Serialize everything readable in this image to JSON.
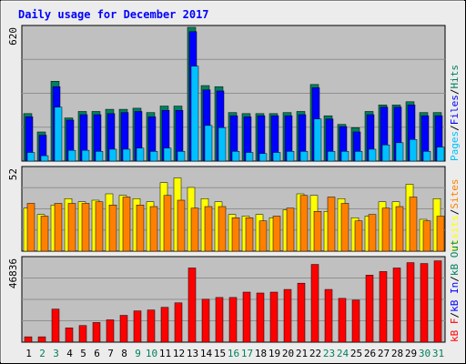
{
  "title": "Daily usage for December 2017",
  "colors": {
    "frame_bg": "#ececec",
    "plot_bg": "#c0c0c0",
    "grid": "#909090",
    "hits": "#00805c",
    "files": "#0000ff",
    "pages": "#00c0ff",
    "visits": "#ffff00",
    "sites": "#ff8000",
    "kbf": "#ff0000",
    "title": "#0000ff"
  },
  "chart_data": [
    {
      "type": "bar",
      "panel": "top",
      "ymax_label": "620",
      "ylim": [
        0,
        620
      ],
      "categories": [
        "1",
        "2",
        "3",
        "4",
        "5",
        "6",
        "7",
        "8",
        "9",
        "10",
        "11",
        "12",
        "13",
        "14",
        "15",
        "16",
        "17",
        "18",
        "19",
        "20",
        "21",
        "22",
        "23",
        "24",
        "25",
        "26",
        "27",
        "28",
        "29",
        "30",
        "31"
      ],
      "weekend_days": [
        "2",
        "3",
        "9",
        "10",
        "16",
        "17",
        "23",
        "24",
        "30",
        "31"
      ],
      "legend": [
        {
          "label": "Pages",
          "color": "#00c0ff"
        },
        {
          "label": "/",
          "color": "#000000"
        },
        {
          "label": "Files",
          "color": "#0000ff"
        },
        {
          "label": "/",
          "color": "#000000"
        },
        {
          "label": "Hits",
          "color": "#00805c"
        }
      ],
      "series": [
        {
          "name": "Hits",
          "values": [
            220,
            135,
            370,
            200,
            230,
            230,
            240,
            240,
            245,
            225,
            255,
            255,
            620,
            350,
            345,
            225,
            220,
            220,
            220,
            225,
            230,
            355,
            210,
            170,
            155,
            230,
            260,
            260,
            275,
            225,
            225
          ]
        },
        {
          "name": "Files",
          "values": [
            205,
            120,
            345,
            190,
            215,
            215,
            220,
            225,
            230,
            205,
            235,
            235,
            600,
            330,
            325,
            210,
            205,
            210,
            210,
            210,
            215,
            340,
            195,
            160,
            135,
            215,
            250,
            250,
            260,
            210,
            210
          ]
        },
        {
          "name": "Pages",
          "values": [
            40,
            25,
            250,
            50,
            50,
            45,
            55,
            55,
            60,
            45,
            60,
            45,
            440,
            165,
            155,
            45,
            40,
            35,
            40,
            45,
            45,
            195,
            45,
            45,
            45,
            55,
            75,
            85,
            100,
            45,
            65
          ]
        }
      ]
    },
    {
      "type": "bar",
      "panel": "middle",
      "ymax_label": "52",
      "ylim": [
        0,
        52
      ],
      "legend": [
        {
          "label": "Visits",
          "color": "#ffff00"
        },
        {
          "label": "/",
          "color": "#000000"
        },
        {
          "label": "Sites",
          "color": "#ff8000"
        }
      ],
      "series": [
        {
          "name": "Visits",
          "values": [
            27,
            23,
            29,
            33,
            31,
            32,
            36,
            35,
            33,
            31,
            43,
            46,
            40,
            33,
            31,
            23,
            22,
            23,
            21,
            26,
            36,
            35,
            25,
            33,
            21,
            22,
            31,
            31,
            42,
            20,
            33
          ]
        },
        {
          "name": "Sites",
          "values": [
            30,
            22,
            30,
            30,
            30,
            31,
            29,
            34,
            29,
            28,
            35,
            32,
            27,
            28,
            28,
            21,
            21,
            19,
            22,
            27,
            35,
            25,
            34,
            30,
            19,
            23,
            27,
            28,
            34,
            19,
            22
          ]
        }
      ]
    },
    {
      "type": "bar",
      "panel": "bottom",
      "ymax_label": "46836",
      "ylim": [
        0,
        46836
      ],
      "legend": [
        {
          "label": "kB F",
          "color": "#ff0000"
        },
        {
          "label": "/",
          "color": "#000000"
        },
        {
          "label": "kB In",
          "color": "#0000ff"
        },
        {
          "label": "/",
          "color": "#000000"
        },
        {
          "label": "kB Out",
          "color": "#00805c"
        }
      ],
      "series": [
        {
          "name": "kB F",
          "values": [
            3000,
            3000,
            18500,
            8000,
            9300,
            11000,
            12500,
            15000,
            17500,
            18000,
            19500,
            22000,
            41500,
            24000,
            25000,
            25000,
            28000,
            27500,
            28000,
            29500,
            33000,
            43500,
            29500,
            24500,
            23500,
            37500,
            39500,
            41500,
            44500,
            44000,
            45500
          ]
        }
      ]
    }
  ]
}
